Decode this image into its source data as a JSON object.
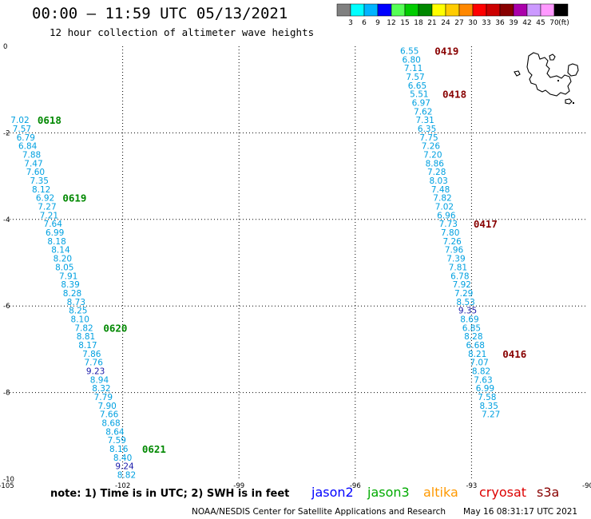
{
  "header": {
    "title": "00:00 – 11:59 UTC 05/13/2021",
    "subtitle": "12 hour collection of altimeter wave heights"
  },
  "colorbar": {
    "labels": [
      "3",
      "6",
      "9",
      "12",
      "15",
      "18",
      "21",
      "24",
      "27",
      "30",
      "33",
      "36",
      "39",
      "42",
      "45",
      "70"
    ],
    "unit": "(ft)",
    "colors": [
      "#808080",
      "#00ffff",
      "#00b4ff",
      "#0000ff",
      "#55ff55",
      "#00cc00",
      "#008800",
      "#ffff00",
      "#ffcc00",
      "#ff8800",
      "#ff0000",
      "#cc0000",
      "#880000",
      "#aa00aa",
      "#cc99ff",
      "#ff99ff",
      "#000000"
    ]
  },
  "footer": {
    "note": "note: 1) Time is in UTC; 2) SWH is in feet",
    "credit": "NOAA/NESDIS Center for Satellite Applications and Research",
    "timestamp": "May 16 08:31:17 UTC 2021",
    "satellites": [
      {
        "name": "jason2",
        "color": "#0000ff"
      },
      {
        "name": "jason3",
        "color": "#00aa00"
      },
      {
        "name": "altika",
        "color": "#ff9900"
      },
      {
        "name": "cryosat",
        "color": "#dd0000"
      },
      {
        "name": "s3a",
        "color": "#880000"
      }
    ]
  },
  "chart_data": {
    "type": "scatter",
    "xlim": [
      -105,
      -90
    ],
    "ylim": [
      -10,
      0
    ],
    "x_ticks": [
      "-105",
      "-102",
      "-99",
      "-96",
      "-93",
      "-90"
    ],
    "x_tick_values": [
      -105,
      -102,
      -99,
      -96,
      -93,
      -90
    ],
    "y_ticks": [
      "0",
      "-2",
      "-4",
      "-6",
      "-8",
      "-10"
    ],
    "y_tick_values": [
      0,
      -2,
      -4,
      -6,
      -8,
      -10
    ],
    "grid": true,
    "value_colors": {
      "low": "#00a0e0",
      "high": "#1a1aaa",
      "threshold": 9
    },
    "series": [
      {
        "name": "jason3",
        "label_color": "#008800",
        "points": [
          {
            "lon": -104.65,
            "lat": -1.7,
            "v": "7.02"
          },
          {
            "lon": -104.6,
            "lat": -1.9,
            "v": "7.57"
          },
          {
            "lon": -104.5,
            "lat": -2.1,
            "v": "6.79"
          },
          {
            "lon": -104.45,
            "lat": -2.3,
            "v": "6.84"
          },
          {
            "lon": -104.35,
            "lat": -2.5,
            "v": "7.88"
          },
          {
            "lon": -104.3,
            "lat": -2.7,
            "v": "7.47"
          },
          {
            "lon": -104.25,
            "lat": -2.9,
            "v": "7.60"
          },
          {
            "lon": -104.15,
            "lat": -3.1,
            "v": "7.35"
          },
          {
            "lon": -104.1,
            "lat": -3.3,
            "v": "8.12"
          },
          {
            "lon": -104.0,
            "lat": -3.5,
            "v": "6.92"
          },
          {
            "lon": -103.95,
            "lat": -3.7,
            "v": "7.27"
          },
          {
            "lon": -103.9,
            "lat": -3.9,
            "v": "7.21"
          },
          {
            "lon": -103.8,
            "lat": -4.1,
            "v": "7.64"
          },
          {
            "lon": -103.75,
            "lat": -4.3,
            "v": "6.99"
          },
          {
            "lon": -103.7,
            "lat": -4.5,
            "v": "8.18"
          },
          {
            "lon": -103.6,
            "lat": -4.7,
            "v": "8.14"
          },
          {
            "lon": -103.55,
            "lat": -4.9,
            "v": "8.20"
          },
          {
            "lon": -103.5,
            "lat": -5.1,
            "v": "8.05"
          },
          {
            "lon": -103.4,
            "lat": -5.3,
            "v": "7.91"
          },
          {
            "lon": -103.35,
            "lat": -5.5,
            "v": "8.39"
          },
          {
            "lon": -103.3,
            "lat": -5.7,
            "v": "8.28"
          },
          {
            "lon": -103.2,
            "lat": -5.9,
            "v": "8.73"
          },
          {
            "lon": -103.15,
            "lat": -6.1,
            "v": "8.25"
          },
          {
            "lon": -103.1,
            "lat": -6.3,
            "v": "8.10"
          },
          {
            "lon": -103.0,
            "lat": -6.5,
            "v": "7.82"
          },
          {
            "lon": -102.95,
            "lat": -6.7,
            "v": "8.81"
          },
          {
            "lon": -102.9,
            "lat": -6.9,
            "v": "8.17"
          },
          {
            "lon": -102.8,
            "lat": -7.1,
            "v": "7.86"
          },
          {
            "lon": -102.75,
            "lat": -7.3,
            "v": "7.76"
          },
          {
            "lon": -102.7,
            "lat": -7.5,
            "v": "9.23"
          },
          {
            "lon": -102.6,
            "lat": -7.7,
            "v": "8.94"
          },
          {
            "lon": -102.55,
            "lat": -7.9,
            "v": "8.32"
          },
          {
            "lon": -102.5,
            "lat": -8.1,
            "v": "7.79"
          },
          {
            "lon": -102.4,
            "lat": -8.3,
            "v": "7.90"
          },
          {
            "lon": -102.35,
            "lat": -8.5,
            "v": "7.66"
          },
          {
            "lon": -102.3,
            "lat": -8.7,
            "v": "8.68"
          },
          {
            "lon": -102.2,
            "lat": -8.9,
            "v": "8.64"
          },
          {
            "lon": -102.15,
            "lat": -9.1,
            "v": "7.59"
          },
          {
            "lon": -102.1,
            "lat": -9.3,
            "v": "8.16"
          },
          {
            "lon": -102.0,
            "lat": -9.5,
            "v": "8.40"
          },
          {
            "lon": -101.95,
            "lat": -9.7,
            "v": "9.24"
          },
          {
            "lon": -101.9,
            "lat": -9.9,
            "v": "8.82"
          }
        ],
        "time_labels": [
          {
            "lon": -104.2,
            "lat": -1.7,
            "t": "0618"
          },
          {
            "lon": -103.55,
            "lat": -3.5,
            "t": "0619"
          },
          {
            "lon": -102.5,
            "lat": -6.5,
            "t": "0620"
          },
          {
            "lon": -101.5,
            "lat": -9.3,
            "t": "0621"
          }
        ]
      },
      {
        "name": "s3a",
        "label_color": "#880000",
        "points": [
          {
            "lon": -94.6,
            "lat": -0.1,
            "v": "6.55"
          },
          {
            "lon": -94.55,
            "lat": -0.3,
            "v": "6.80"
          },
          {
            "lon": -94.5,
            "lat": -0.5,
            "v": "7.11"
          },
          {
            "lon": -94.45,
            "lat": -0.7,
            "v": "7.57"
          },
          {
            "lon": -94.4,
            "lat": -0.9,
            "v": "6.65"
          },
          {
            "lon": -94.35,
            "lat": -1.1,
            "v": "5.51"
          },
          {
            "lon": -94.3,
            "lat": -1.3,
            "v": "6.97"
          },
          {
            "lon": -94.25,
            "lat": -1.5,
            "v": "7.62"
          },
          {
            "lon": -94.2,
            "lat": -1.7,
            "v": "7.31"
          },
          {
            "lon": -94.15,
            "lat": -1.9,
            "v": "6.35"
          },
          {
            "lon": -94.1,
            "lat": -2.1,
            "v": "7.75"
          },
          {
            "lon": -94.05,
            "lat": -2.3,
            "v": "7.26"
          },
          {
            "lon": -94.0,
            "lat": -2.5,
            "v": "7.20"
          },
          {
            "lon": -93.95,
            "lat": -2.7,
            "v": "8.86"
          },
          {
            "lon": -93.9,
            "lat": -2.9,
            "v": "7.28"
          },
          {
            "lon": -93.85,
            "lat": -3.1,
            "v": "8.03"
          },
          {
            "lon": -93.8,
            "lat": -3.3,
            "v": "7.48"
          },
          {
            "lon": -93.75,
            "lat": -3.5,
            "v": "7.82"
          },
          {
            "lon": -93.7,
            "lat": -3.7,
            "v": "7.02"
          },
          {
            "lon": -93.65,
            "lat": -3.9,
            "v": "6.96"
          },
          {
            "lon": -93.6,
            "lat": -4.1,
            "v": "7.73"
          },
          {
            "lon": -93.55,
            "lat": -4.3,
            "v": "7.80"
          },
          {
            "lon": -93.5,
            "lat": -4.5,
            "v": "7.26"
          },
          {
            "lon": -93.45,
            "lat": -4.7,
            "v": "7.96"
          },
          {
            "lon": -93.4,
            "lat": -4.9,
            "v": "7.39"
          },
          {
            "lon": -93.35,
            "lat": -5.1,
            "v": "7.81"
          },
          {
            "lon": -93.3,
            "lat": -5.3,
            "v": "6.78"
          },
          {
            "lon": -93.25,
            "lat": -5.5,
            "v": "7.92"
          },
          {
            "lon": -93.2,
            "lat": -5.7,
            "v": "7.29"
          },
          {
            "lon": -93.15,
            "lat": -5.9,
            "v": "8.53"
          },
          {
            "lon": -93.1,
            "lat": -6.1,
            "v": "9.35"
          },
          {
            "lon": -93.05,
            "lat": -6.3,
            "v": "8.69"
          },
          {
            "lon": -93.0,
            "lat": -6.5,
            "v": "6.85"
          },
          {
            "lon": -92.95,
            "lat": -6.7,
            "v": "8.28"
          },
          {
            "lon": -92.9,
            "lat": -6.9,
            "v": "6.68"
          },
          {
            "lon": -92.85,
            "lat": -7.1,
            "v": "8.21"
          },
          {
            "lon": -92.8,
            "lat": -7.3,
            "v": "7.07"
          },
          {
            "lon": -92.75,
            "lat": -7.5,
            "v": "8.82"
          },
          {
            "lon": -92.7,
            "lat": -7.7,
            "v": "7.63"
          },
          {
            "lon": -92.65,
            "lat": -7.9,
            "v": "6.99"
          },
          {
            "lon": -92.6,
            "lat": -8.1,
            "v": "7.58"
          },
          {
            "lon": -92.55,
            "lat": -8.3,
            "v": "8.35"
          },
          {
            "lon": -92.5,
            "lat": -8.5,
            "v": "7.27"
          }
        ],
        "time_labels": [
          {
            "lon": -93.95,
            "lat": -0.1,
            "t": "0419"
          },
          {
            "lon": -93.75,
            "lat": -1.1,
            "t": "0418"
          },
          {
            "lon": -92.95,
            "lat": -4.1,
            "t": "0417"
          },
          {
            "lon": -92.2,
            "lat": -7.1,
            "t": "0416"
          }
        ]
      }
    ]
  }
}
